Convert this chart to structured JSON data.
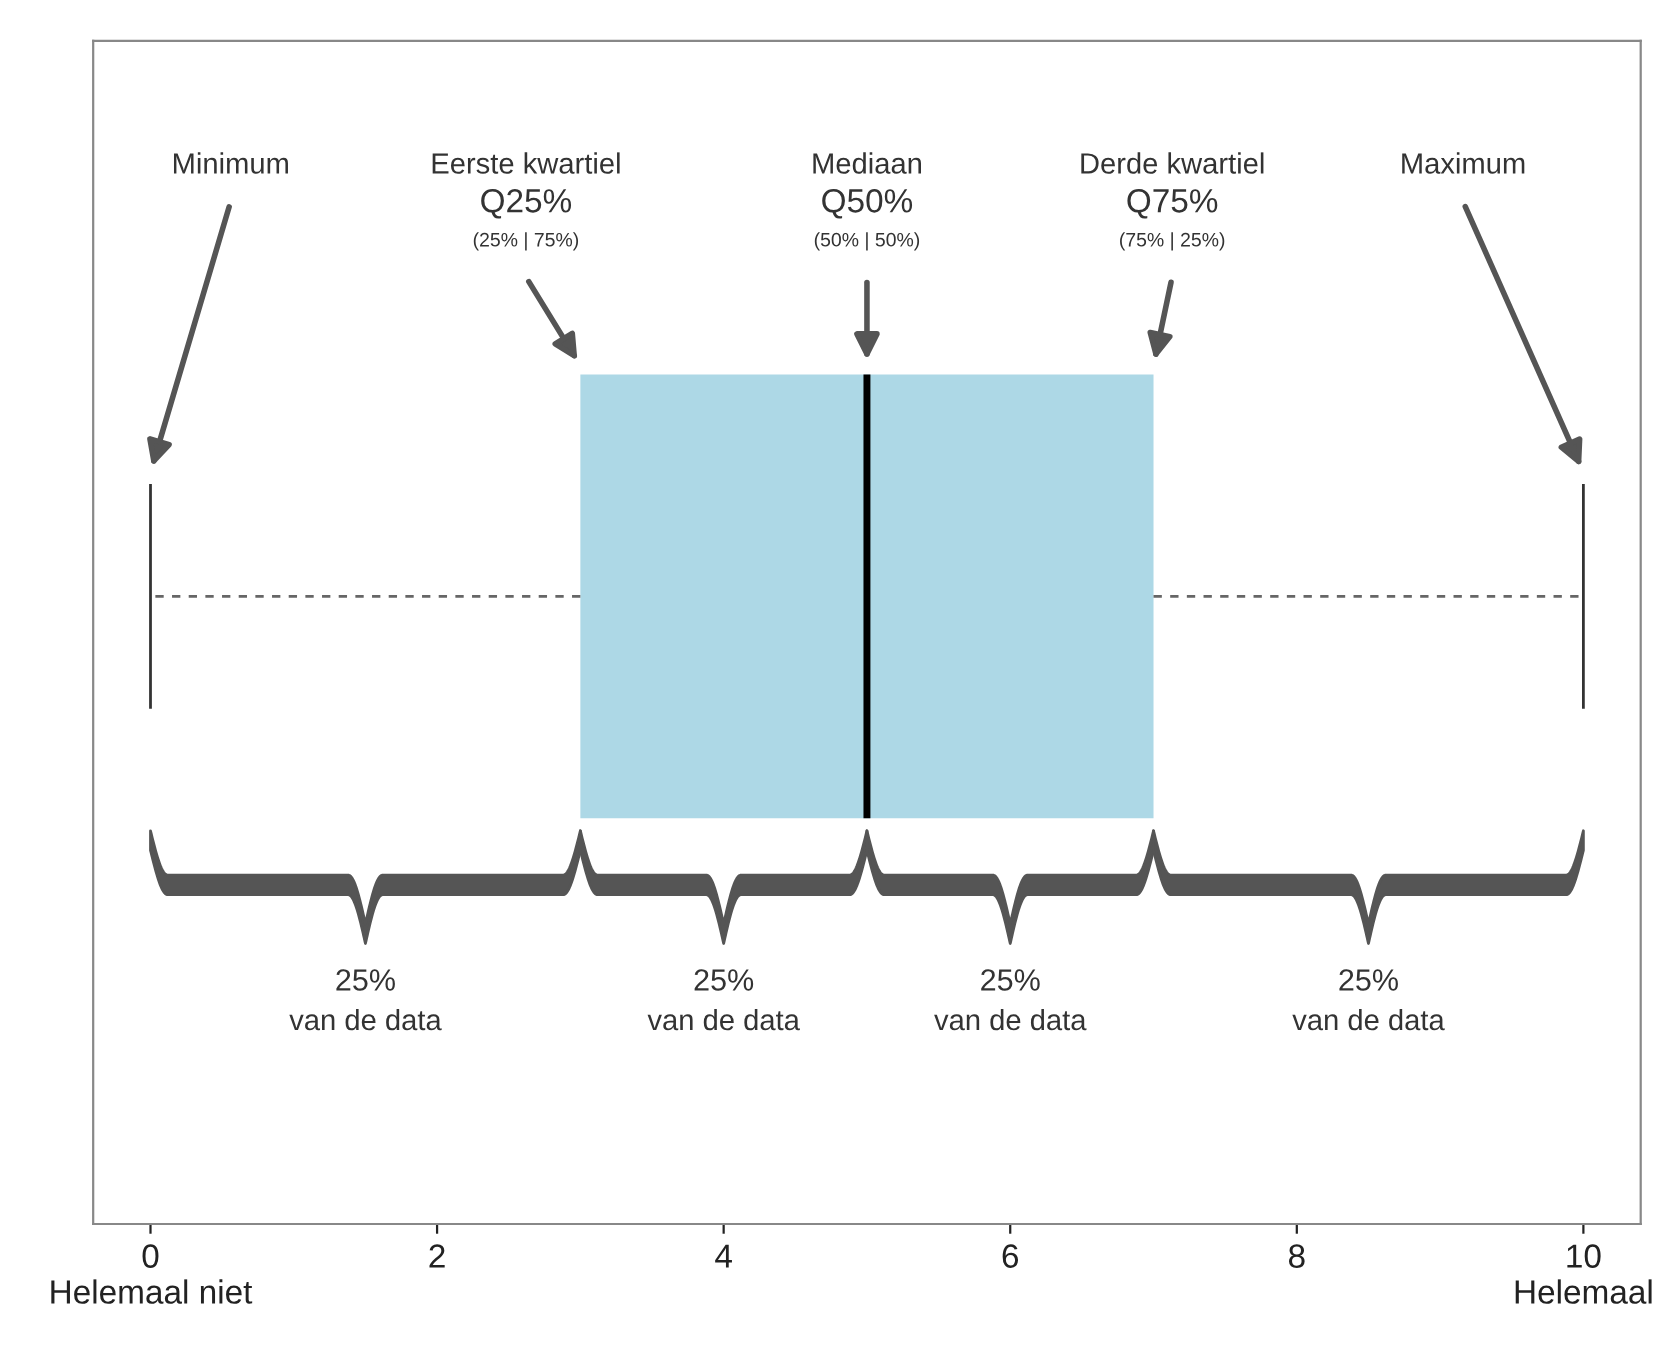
{
  "chart_data": {
    "type": "box",
    "orientation": "horizontal",
    "categories": [
      null
    ],
    "boxes": [
      {
        "low": 0,
        "q1": 3,
        "median": 5,
        "q3": 7,
        "high": 10
      }
    ],
    "color": "#add8e6",
    "xlim": [
      -0.4,
      10.4
    ],
    "xticks": [
      {
        "value": 0,
        "label": "0\nHelemaal niet"
      },
      2,
      4,
      6,
      8,
      {
        "value": 10,
        "label": "10\nHelemaal"
      }
    ],
    "tick_labels": "x",
    "grid": false,
    "legend": false,
    "annotations": [
      "Minimum",
      "Eerste kwartiel\nQ25%\n(25% | 75%)",
      "Mediaan\nQ50%\n(50% | 50%)",
      "Derde kwartiel\nQ75%\n(75% | 25%)",
      "Maximum",
      "25%\nvan de data",
      "25%\nvan de data",
      "25%\nvan de data",
      "25%\nvan de data"
    ]
  }
}
